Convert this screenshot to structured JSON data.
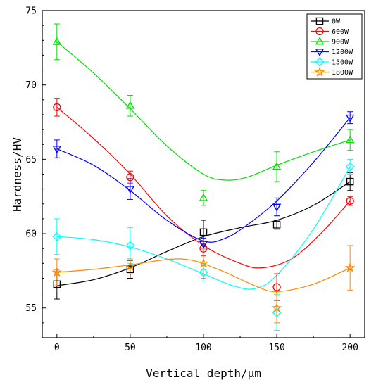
{
  "chart_data": {
    "type": "scatter",
    "title": "",
    "xlabel": "Vertical depth/μm",
    "ylabel": "Hardness/HV",
    "xlim": [
      -10,
      210
    ],
    "ylim": [
      53,
      75
    ],
    "xticks": [
      0,
      50,
      100,
      150,
      200
    ],
    "yticks": [
      55,
      60,
      65,
      70,
      75
    ],
    "x": [
      0,
      50,
      100,
      150,
      200
    ],
    "legend_position": "top-right",
    "grid": false,
    "series": [
      {
        "name": "0W",
        "color": "#000000",
        "marker": "square",
        "values": [
          56.6,
          57.6,
          60.1,
          60.6,
          63.5
        ],
        "errors": [
          1.0,
          0.6,
          0.8,
          0.3,
          0.6
        ],
        "curve": [
          [
            0,
            56.5
          ],
          [
            25,
            56.9
          ],
          [
            50,
            57.7
          ],
          [
            75,
            58.8
          ],
          [
            100,
            59.8
          ],
          [
            125,
            60.4
          ],
          [
            150,
            60.9
          ],
          [
            175,
            61.9
          ],
          [
            200,
            63.5
          ]
        ]
      },
      {
        "name": "600W",
        "color": "#ff0000",
        "marker": "circle",
        "values": [
          68.5,
          63.8,
          59.0,
          56.4,
          62.2
        ],
        "errors": [
          0.6,
          0.4,
          0.5,
          0.9,
          0.3
        ],
        "curve": [
          [
            0,
            68.5
          ],
          [
            25,
            66.4
          ],
          [
            50,
            64.0
          ],
          [
            75,
            61.2
          ],
          [
            100,
            59.2
          ],
          [
            125,
            58.0
          ],
          [
            140,
            57.7
          ],
          [
            160,
            58.3
          ],
          [
            180,
            60.0
          ],
          [
            200,
            62.2
          ]
        ]
      },
      {
        "name": "900W",
        "color": "#00dd00",
        "marker": "triangle-up",
        "values": [
          72.9,
          68.6,
          62.4,
          64.5,
          66.3
        ],
        "errors": [
          1.2,
          0.7,
          0.5,
          1.0,
          0.7
        ],
        "curve": [
          [
            0,
            72.9
          ],
          [
            25,
            70.8
          ],
          [
            50,
            68.4
          ],
          [
            75,
            65.9
          ],
          [
            100,
            64.0
          ],
          [
            115,
            63.6
          ],
          [
            130,
            63.8
          ],
          [
            150,
            64.6
          ],
          [
            175,
            65.5
          ],
          [
            200,
            66.3
          ]
        ]
      },
      {
        "name": "1200W",
        "color": "#0000ff",
        "marker": "triangle-down",
        "values": [
          65.7,
          63.0,
          59.3,
          61.8,
          67.8
        ],
        "errors": [
          0.6,
          0.7,
          0.4,
          0.6,
          0.4
        ],
        "curve": [
          [
            0,
            65.7
          ],
          [
            25,
            64.6
          ],
          [
            50,
            62.9
          ],
          [
            75,
            60.9
          ],
          [
            100,
            59.5
          ],
          [
            115,
            59.7
          ],
          [
            130,
            60.6
          ],
          [
            150,
            62.2
          ],
          [
            175,
            64.8
          ],
          [
            200,
            67.8
          ]
        ]
      },
      {
        "name": "1500W",
        "color": "#00ffff",
        "marker": "diamond",
        "values": [
          59.8,
          59.2,
          57.4,
          54.7,
          64.5
        ],
        "errors": [
          1.2,
          1.2,
          0.6,
          1.2,
          0.5
        ],
        "curve": [
          [
            0,
            59.8
          ],
          [
            25,
            59.6
          ],
          [
            50,
            59.1
          ],
          [
            75,
            58.3
          ],
          [
            100,
            57.3
          ],
          [
            120,
            56.5
          ],
          [
            135,
            56.3
          ],
          [
            150,
            57.2
          ],
          [
            175,
            60.3
          ],
          [
            200,
            64.5
          ]
        ]
      },
      {
        "name": "1800W",
        "color": "#ff8800",
        "marker": "star",
        "values": [
          57.4,
          57.8,
          58.0,
          55.0,
          57.7
        ],
        "errors": [
          0.9,
          0.5,
          1.0,
          1.0,
          1.5
        ],
        "curve": [
          [
            0,
            57.4
          ],
          [
            25,
            57.6
          ],
          [
            50,
            57.9
          ],
          [
            85,
            58.3
          ],
          [
            110,
            57.6
          ],
          [
            135,
            56.5
          ],
          [
            150,
            56.1
          ],
          [
            175,
            56.6
          ],
          [
            200,
            57.7
          ]
        ]
      }
    ]
  }
}
